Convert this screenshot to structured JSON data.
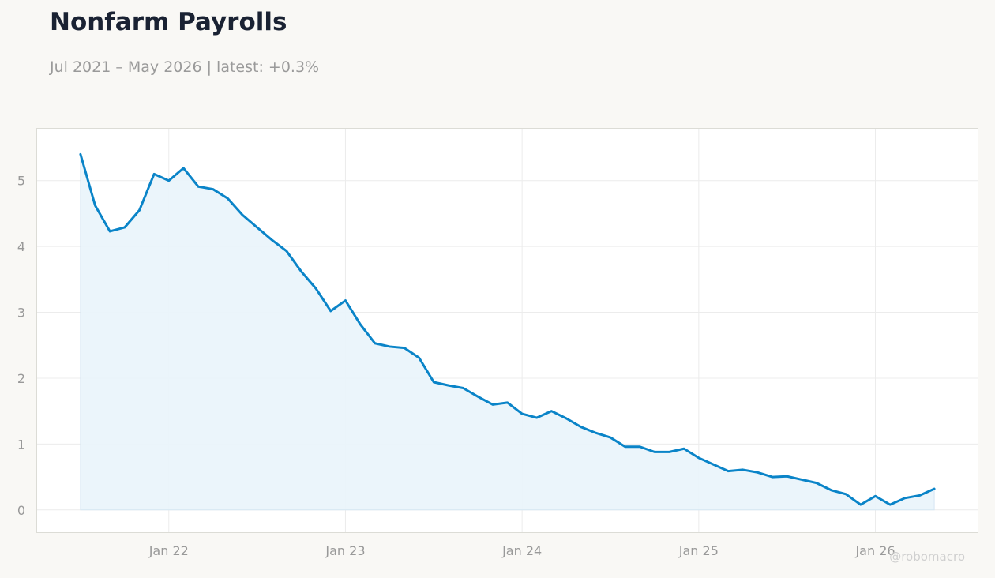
{
  "header": {
    "title": "Nonfarm Payrolls",
    "subtitle": "Jul 2021 – May 2026 | latest: +0.3%"
  },
  "watermark": "@robomacro",
  "colors": {
    "line": "#0a84c8",
    "area": "#eaf4fb",
    "grid": "#ececec",
    "axis_text": "#999999",
    "plot_border": "#dcdcd6",
    "background": "#f9f8f5",
    "plot_background": "#ffffff"
  },
  "chart_data": {
    "type": "area",
    "title": "Nonfarm Payrolls",
    "xlabel": "",
    "ylabel": "",
    "x_start": "2021-07",
    "x_end": "2026-05",
    "xlim": [
      "2021-04",
      "2026-08"
    ],
    "ylim": [
      -0.35,
      5.8
    ],
    "grid": true,
    "legend": "none",
    "y_ticks": [
      0,
      1,
      2,
      3,
      4,
      5
    ],
    "x_ticks": [
      {
        "date": "2022-01",
        "label": "Jan 22"
      },
      {
        "date": "2023-01",
        "label": "Jan 23"
      },
      {
        "date": "2024-01",
        "label": "Jan 24"
      },
      {
        "date": "2025-01",
        "label": "Jan 25"
      },
      {
        "date": "2026-01",
        "label": "Jan 26"
      }
    ],
    "x": [
      "2021-07",
      "2021-08",
      "2021-09",
      "2021-10",
      "2021-11",
      "2021-12",
      "2022-01",
      "2022-02",
      "2022-03",
      "2022-04",
      "2022-05",
      "2022-06",
      "2022-07",
      "2022-08",
      "2022-09",
      "2022-10",
      "2022-11",
      "2022-12",
      "2023-01",
      "2023-02",
      "2023-03",
      "2023-04",
      "2023-05",
      "2023-06",
      "2023-07",
      "2023-08",
      "2023-09",
      "2023-10",
      "2023-11",
      "2023-12",
      "2024-01",
      "2024-02",
      "2024-03",
      "2024-04",
      "2024-05",
      "2024-06",
      "2024-07",
      "2024-08",
      "2024-09",
      "2024-10",
      "2024-11",
      "2024-12",
      "2025-01",
      "2025-02",
      "2025-03",
      "2025-04",
      "2025-05",
      "2025-06",
      "2025-07",
      "2025-08",
      "2025-09",
      "2025-10",
      "2025-11",
      "2025-12",
      "2026-01",
      "2026-02",
      "2026-03",
      "2026-04",
      "2026-05"
    ],
    "series": [
      {
        "values": [
          5.4,
          4.62,
          4.23,
          4.29,
          4.55,
          5.1,
          5.0,
          5.19,
          4.91,
          4.87,
          4.73,
          4.48,
          4.29,
          4.1,
          3.93,
          3.62,
          3.36,
          3.02,
          3.18,
          2.82,
          2.53,
          2.48,
          2.46,
          2.31,
          1.94,
          1.89,
          1.85,
          1.72,
          1.6,
          1.63,
          1.46,
          1.4,
          1.5,
          1.39,
          1.26,
          1.17,
          1.1,
          0.96,
          0.96,
          0.88,
          0.88,
          0.93,
          0.79,
          0.69,
          0.59,
          0.61,
          0.57,
          0.5,
          0.51,
          0.46,
          0.41,
          0.3,
          0.24,
          0.08,
          0.21,
          0.08,
          0.18,
          0.22,
          0.32
        ]
      }
    ]
  }
}
